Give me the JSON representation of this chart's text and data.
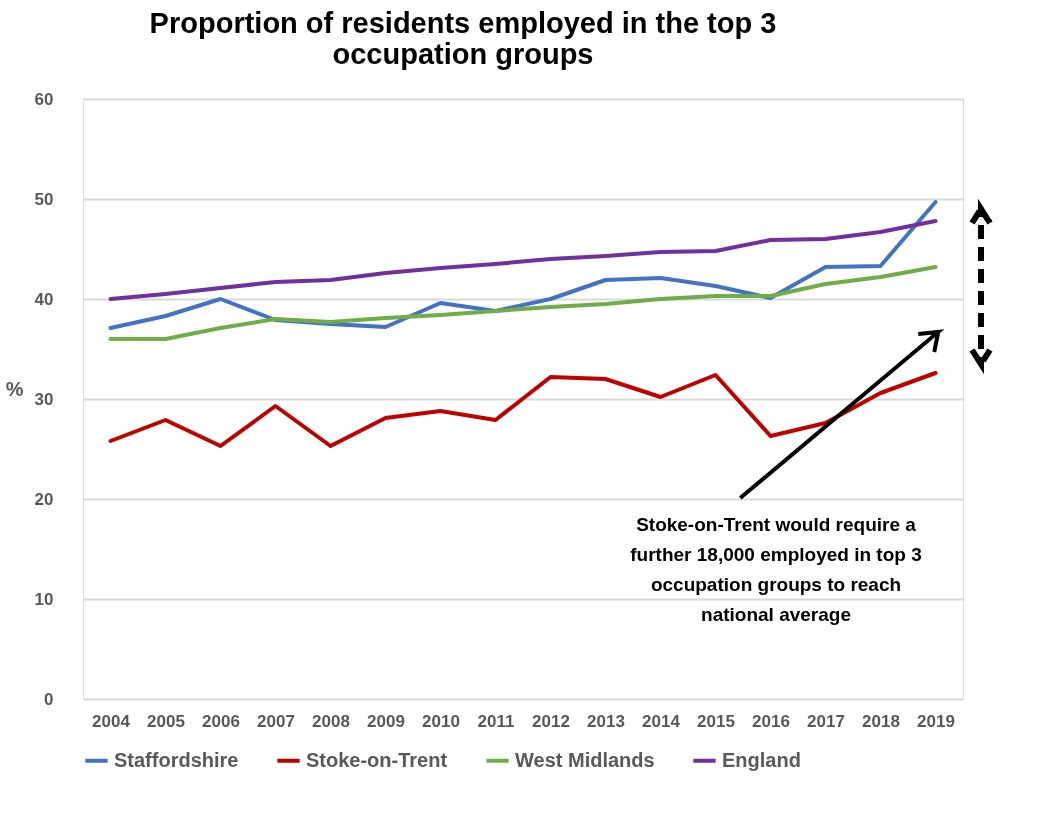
{
  "chart_data": {
    "type": "line",
    "title": "Proportion of residents employed in the top 3 occupation groups",
    "ylabel": "%",
    "categories": [
      "2004",
      "2005",
      "2006",
      "2007",
      "2008",
      "2009",
      "2010",
      "2011",
      "2012",
      "2013",
      "2014",
      "2015",
      "2016",
      "2017",
      "2018",
      "2019"
    ],
    "series": [
      {
        "name": "Staffordshire",
        "color": "#4472c4",
        "values": [
          37.1,
          38.3,
          40.0,
          37.9,
          37.5,
          37.2,
          39.6,
          38.8,
          40.0,
          41.9,
          42.1,
          41.3,
          40.1,
          43.2,
          43.3,
          49.7
        ]
      },
      {
        "name": "Stoke-on-Trent",
        "color": "#c00000",
        "values": [
          25.8,
          27.9,
          25.3,
          29.3,
          25.3,
          28.1,
          28.8,
          27.9,
          32.2,
          32.0,
          30.2,
          32.4,
          26.3,
          27.6,
          30.6,
          32.6
        ]
      },
      {
        "name": "West Midlands",
        "color": "#70ad47",
        "values": [
          36.0,
          36.0,
          37.1,
          38.0,
          37.7,
          38.1,
          38.4,
          38.8,
          39.2,
          39.5,
          40.0,
          40.3,
          40.3,
          41.5,
          42.2,
          43.2
        ]
      },
      {
        "name": "England",
        "color": "#7030a0",
        "values": [
          40.0,
          40.5,
          41.1,
          41.7,
          41.9,
          42.6,
          43.1,
          43.5,
          44.0,
          44.3,
          44.7,
          44.8,
          45.9,
          46.0,
          46.7,
          47.8
        ]
      }
    ],
    "ylim": [
      0,
      60
    ],
    "yticks": [
      0,
      10,
      20,
      30,
      40,
      50,
      60
    ],
    "grid": "y",
    "legend": "bottom",
    "marker": "none",
    "line_style": "solid",
    "annotations": [
      "Stoke-on-Trent would require a further 18,000 employed in top 3 occupation groups to reach national average"
    ]
  }
}
